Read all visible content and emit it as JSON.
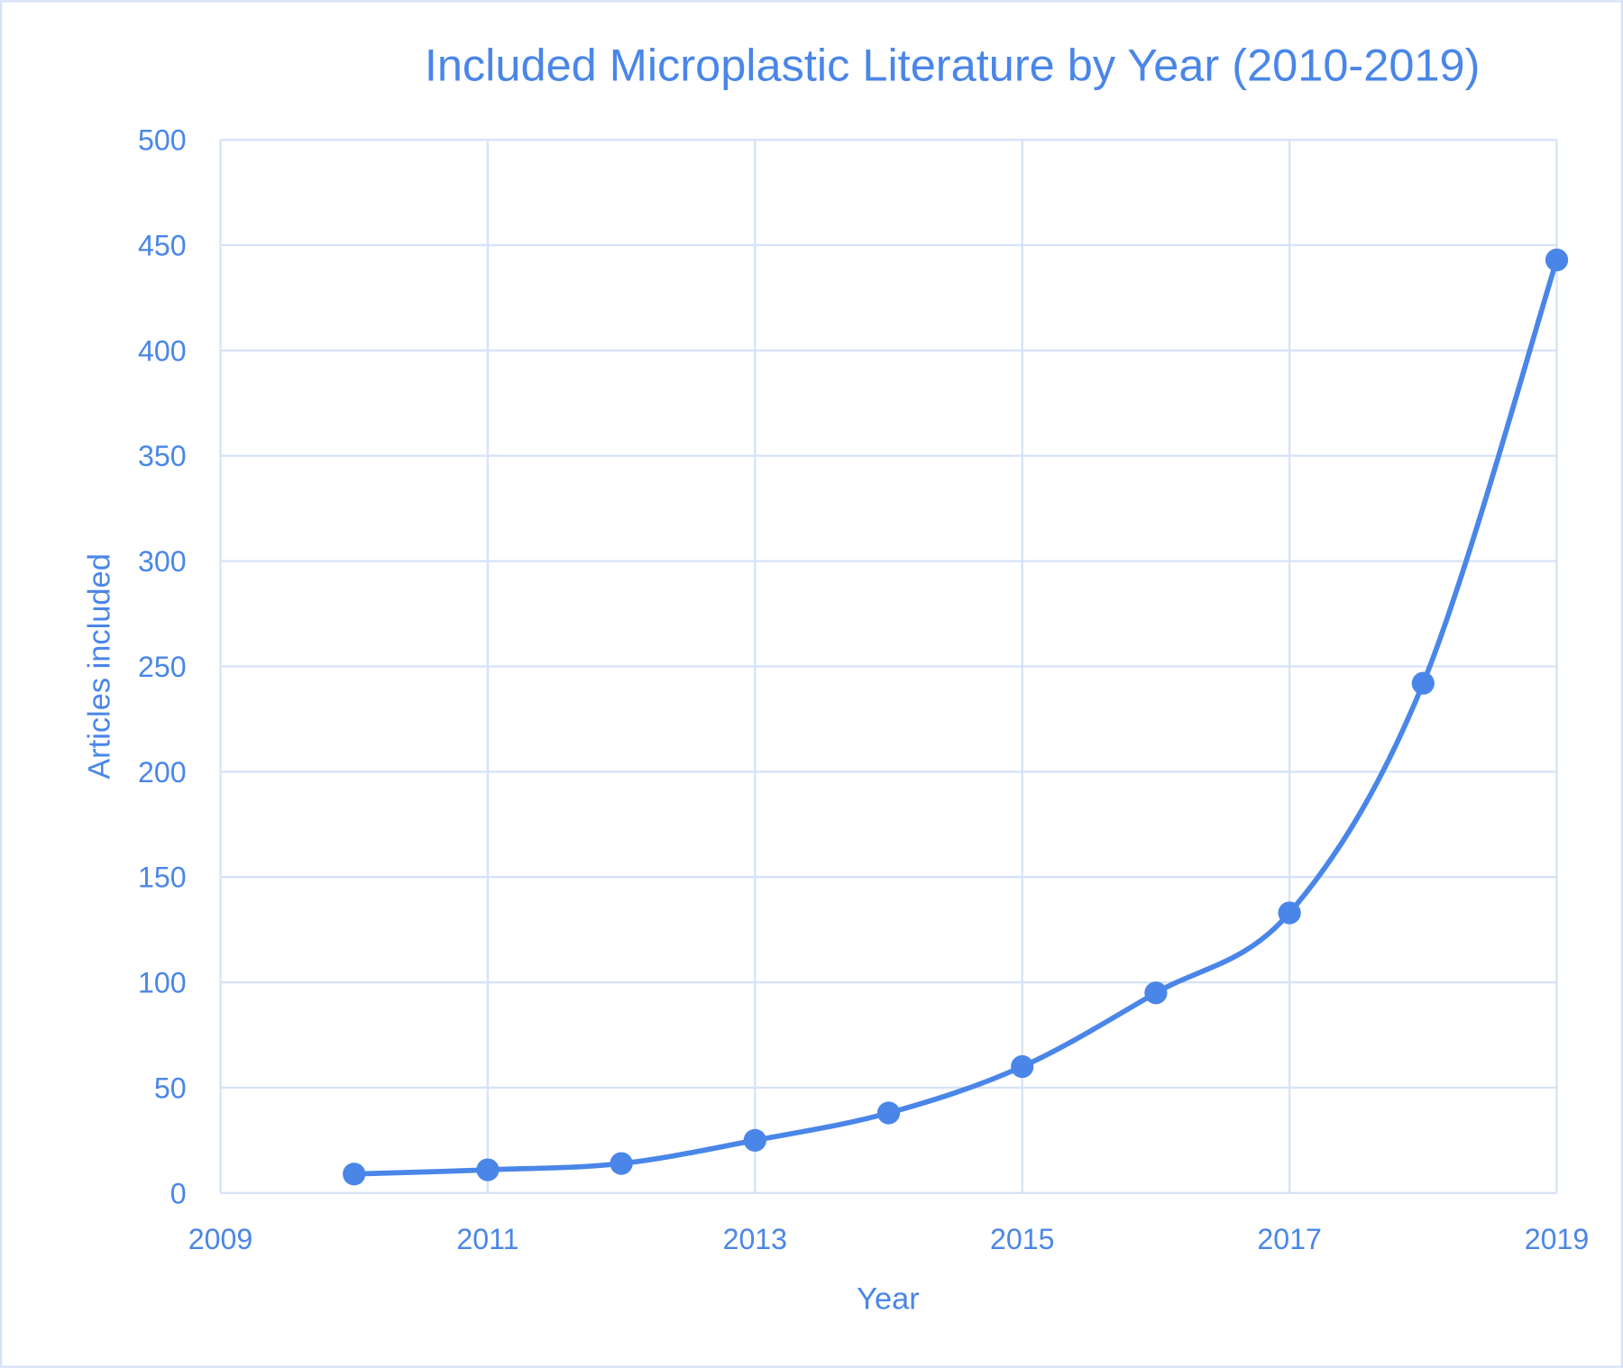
{
  "chart_data": {
    "type": "line",
    "title": "Included Microplastic Literature by Year (2010-2019)",
    "xlabel": "Year",
    "ylabel": "Articles included",
    "x": [
      2010,
      2011,
      2012,
      2013,
      2014,
      2015,
      2016,
      2017,
      2018,
      2019
    ],
    "series": [
      {
        "name": "Articles included",
        "values": [
          9,
          11,
          14,
          25,
          38,
          60,
          95,
          133,
          242,
          443
        ]
      }
    ],
    "xlim": [
      2009,
      2019
    ],
    "ylim": [
      0,
      500
    ],
    "xticks": [
      "2009",
      "2011",
      "2013",
      "2015",
      "2017",
      "2019"
    ],
    "yticks": [
      "0",
      "50",
      "100",
      "150",
      "200",
      "250",
      "300",
      "350",
      "400",
      "450",
      "500"
    ],
    "grid": true,
    "smooth": true,
    "colors": {
      "line": "#4a86e8",
      "grid": "#d6e2f7",
      "text": "#4a86e8",
      "border": "#d6e2f7"
    }
  }
}
